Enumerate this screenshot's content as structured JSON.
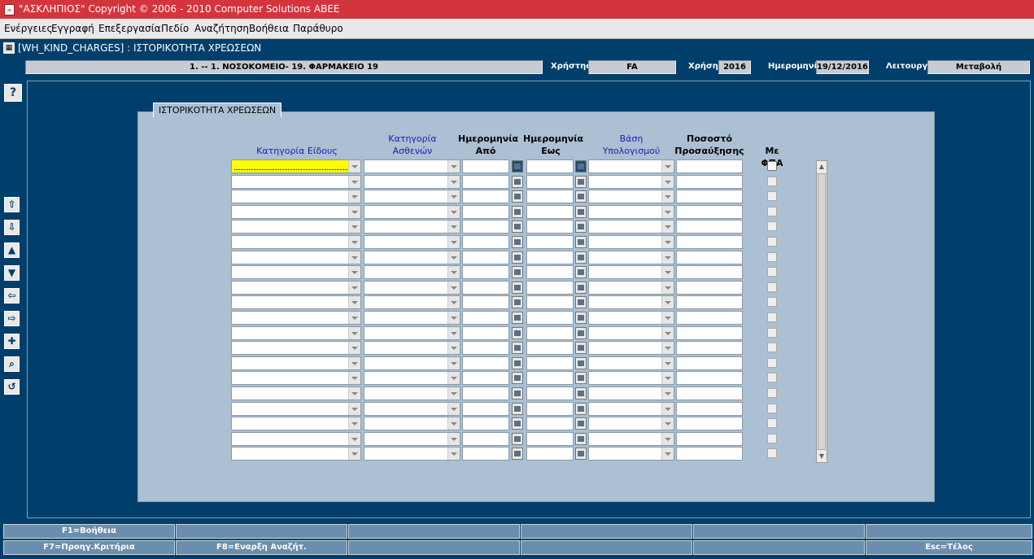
{
  "window": {
    "title": "\"ΑΣΚΛΗΠΙΟΣ\" Copyright © 2006 - 2010 Computer Solutions ABEE",
    "app_icon": "java-icon"
  },
  "menu": [
    {
      "label": "Ενέργειες"
    },
    {
      "label": "Εγγραφή"
    },
    {
      "label": "Επεξεργασία"
    },
    {
      "label": "Πεδίο"
    },
    {
      "label": "Αναζήτηση"
    },
    {
      "label": "Βοήθεια"
    },
    {
      "label": "Παράθυρο"
    }
  ],
  "form": {
    "title": "[WH_KIND_CHARGES]  :  ΙΣΤΟΡΙΚΟΤΗΤΑ ΧΡΕΩΣΕΩΝ"
  },
  "info": {
    "unit": "1. -- 1. ΝΟΣΟΚΟΜΕΙΟ- 19. ΦΑΡΜΑΚΕΙΟ 19",
    "user_label": "Χρήστης",
    "user_value": "FA",
    "year_label": "Χρήση",
    "year_value": "2016",
    "date_label": "Ημερομηνία",
    "date_value": "19/12/2016",
    "mode_label": "Λειτουργία",
    "mode_value": "Μεταβολή"
  },
  "toolbar": {
    "help_label": "?",
    "buttons": [
      "arrow-up-icon",
      "arrow-down-icon",
      "triangle-up-icon",
      "triangle-down-icon",
      "arrow-left-icon",
      "arrow-right-icon",
      "plus-icon",
      "search-icon",
      "undo-icon"
    ]
  },
  "panel": {
    "tab_title": "ΙΣΤΟΡΙΚΟΤΗΤΑ ΧΡΕΩΣΕΩΝ",
    "columns": {
      "item_category": "Κατηγορία Είδους",
      "patient_category_1": "Κατηγορία",
      "patient_category_2": "Ασθενών",
      "date_from_1": "Ημερομηνία",
      "date_from_2": "Από",
      "date_to_1": "Ημερομηνία",
      "date_to_2": "Εως",
      "calc_basis_1": "Βάση",
      "calc_basis_2": "Υπολογισμού",
      "markup_1": "Ποσοστό",
      "markup_2": "Προσαύξησης",
      "vat": "Με ΦΠΑ"
    },
    "row_count": 20
  },
  "status": {
    "row1": [
      "F1=Βοήθεια",
      "",
      "",
      "",
      "",
      ""
    ],
    "row2": [
      "F7=Προηγ.Κριτήρια",
      "F8=Εναρξη Αναζήτ.",
      "",
      "",
      "",
      "Esc=Τέλος"
    ]
  }
}
